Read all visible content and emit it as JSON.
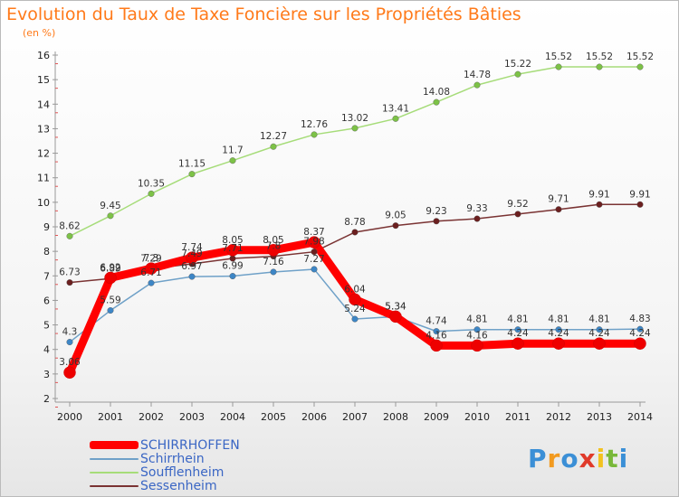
{
  "title": "Evolution du Taux de Taxe Foncière sur les Propriétés Bâties",
  "unit_label": "(en %)",
  "logo": {
    "letters": [
      "P",
      "r",
      "o",
      "x",
      "i",
      "t",
      "i"
    ],
    "colors": [
      "#3b8fd6",
      "#f29a1f",
      "#3b8fd6",
      "#e03a2a",
      "#f2c21f",
      "#79b83a",
      "#3b8fd6"
    ]
  },
  "chart_data": {
    "type": "line",
    "x": [
      2000,
      2001,
      2002,
      2003,
      2004,
      2005,
      2006,
      2007,
      2008,
      2009,
      2010,
      2011,
      2012,
      2013,
      2014
    ],
    "ylim": [
      2,
      16
    ],
    "yticks": [
      2,
      3,
      4,
      5,
      6,
      7,
      8,
      9,
      10,
      11,
      12,
      13,
      14,
      15,
      16
    ],
    "grid": false,
    "legend_position": "bottom-left",
    "series": [
      {
        "name": "SCHIRRHOFFEN",
        "color": "#ff0000",
        "dot": "#ee0000",
        "width": 9,
        "values": [
          3.06,
          6.92,
          7.3,
          7.74,
          8.05,
          8.05,
          8.37,
          6.04,
          5.34,
          4.16,
          4.16,
          4.24,
          4.24,
          4.24,
          4.24
        ]
      },
      {
        "name": "Schirrhein",
        "color": "#6fa1c8",
        "dot": "#3d86c6",
        "width": 1.5,
        "values": [
          4.3,
          5.59,
          6.71,
          6.97,
          6.99,
          7.16,
          7.27,
          5.24,
          5.34,
          4.74,
          4.81,
          4.81,
          4.81,
          4.81,
          4.83
        ]
      },
      {
        "name": "Soufflenheim",
        "color": "#a6dc79",
        "dot": "#7dc247",
        "width": 1.5,
        "values": [
          8.62,
          9.45,
          10.35,
          11.15,
          11.7,
          12.27,
          12.76,
          13.02,
          13.41,
          14.08,
          14.78,
          15.22,
          15.52,
          15.52,
          15.52
        ]
      },
      {
        "name": "Sessenheim",
        "color": "#7a3333",
        "dot": "#6b1f1f",
        "width": 1.5,
        "values": [
          6.73,
          6.89,
          7.29,
          7.49,
          7.71,
          7.8,
          7.98,
          8.78,
          9.05,
          9.23,
          9.33,
          9.52,
          9.71,
          9.91,
          9.91
        ]
      }
    ],
    "data_labels": [
      {
        "series": 0,
        "texts": [
          "3.06",
          "6.92",
          "7.3",
          "7.74",
          "8.05",
          "8.05",
          "8.37",
          "6.04",
          "5.34",
          "4.16",
          "4.16",
          "4.24",
          "4.24",
          "4.24",
          "4.24"
        ]
      },
      {
        "series": 1,
        "texts": [
          "4.3",
          "5.59",
          "6.71",
          "6.97",
          "6.99",
          "7.16",
          "7.27",
          "5.24",
          "5.34",
          "4.74",
          "4.81",
          "4.81",
          "4.81",
          "4.81",
          "4.83"
        ]
      },
      {
        "series": 2,
        "texts": [
          "8.62",
          "9.45",
          "10.35",
          "11.15",
          "11.7",
          "12.27",
          "12.76",
          "13.02",
          "13.41",
          "14.08",
          "14.78",
          "15.22",
          "15.52",
          "15.52",
          "15.52"
        ]
      },
      {
        "series": 3,
        "texts": [
          "6.73",
          "6.89",
          "7.29",
          "7.49",
          "7.71",
          "7.8",
          "7.98",
          "8.78",
          "9.05",
          "9.23",
          "9.33",
          "9.52",
          "9.71",
          "9.91",
          "9.91"
        ]
      }
    ]
  }
}
